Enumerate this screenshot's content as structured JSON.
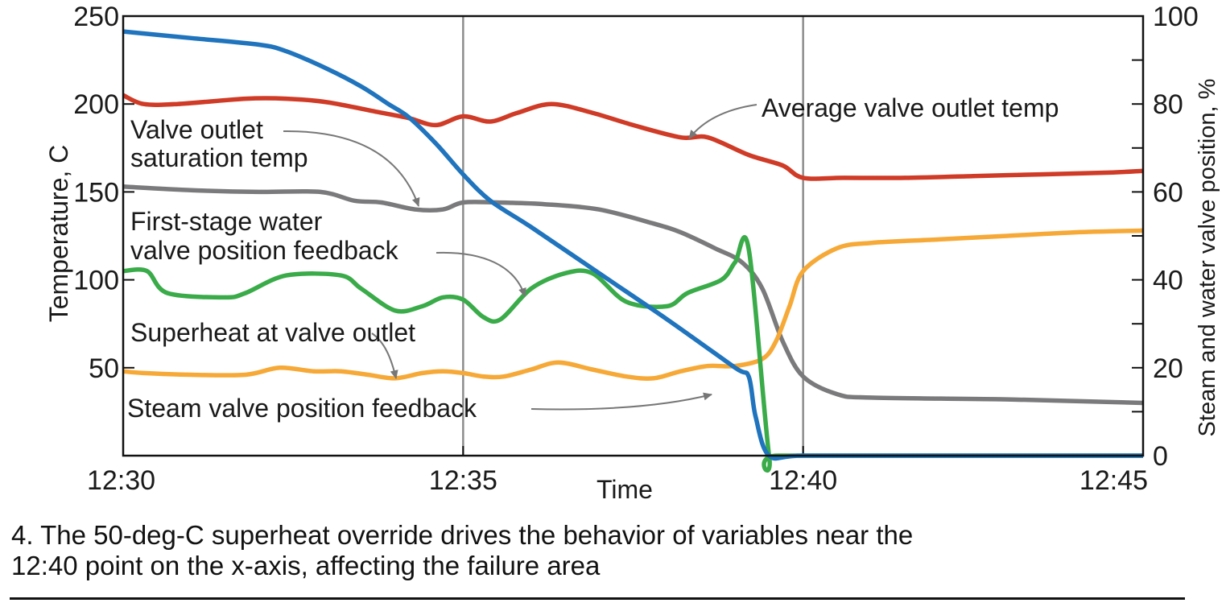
{
  "chart_data": {
    "type": "line",
    "x_ticks": [
      "12:30",
      "12:35",
      "12:40",
      "12:45"
    ],
    "x_range": [
      0,
      15
    ],
    "xlabel": "Time",
    "ylabel_left": "Temperature, C",
    "ylabel_right": "Steam and water valve position, %",
    "y_left": {
      "range": [
        0,
        250
      ],
      "ticks": [
        50,
        100,
        150,
        200,
        250
      ]
    },
    "y_right": {
      "range": [
        0,
        100
      ],
      "ticks": [
        0,
        20,
        40,
        60,
        80,
        100
      ]
    },
    "vertical_reference_lines_at": [
      5,
      10
    ],
    "series": [
      {
        "name": "Average valve outlet temp",
        "axis": "left",
        "color": "#cf3b26",
        "x": [
          0,
          0.3,
          0.8,
          1.8,
          2.4,
          3.0,
          3.8,
          4.2,
          4.6,
          5.0,
          5.4,
          5.8,
          6.3,
          6.9,
          7.5,
          8.2,
          8.6,
          9.2,
          9.7,
          10.0,
          10.6,
          11.5,
          12.5,
          13.5,
          14.5,
          15
        ],
        "y": [
          205,
          200,
          200,
          203,
          203,
          201,
          195,
          192,
          188,
          193,
          190,
          195,
          200,
          195,
          188,
          181,
          181,
          171,
          165,
          158,
          158,
          158,
          159,
          160,
          161,
          162
        ]
      },
      {
        "name": "Valve outlet saturation temp",
        "axis": "left",
        "color": "#7a7a7c",
        "x": [
          0,
          1.0,
          2.0,
          2.9,
          3.4,
          3.8,
          4.3,
          4.7,
          5.0,
          5.5,
          6.2,
          7.0,
          7.8,
          8.2,
          8.7,
          9.1,
          9.4,
          9.7,
          10.0,
          10.5,
          11.0,
          13.0,
          15
        ],
        "y": [
          153,
          151,
          150,
          150,
          145,
          144,
          140,
          140,
          144,
          144,
          143,
          140,
          132,
          127,
          118,
          110,
          95,
          65,
          45,
          35,
          33,
          32,
          30
        ]
      },
      {
        "name": "First-stage water valve position feedback",
        "axis": "right",
        "color": "#3aab49",
        "x": [
          0,
          0.35,
          0.65,
          1.5,
          1.8,
          2.4,
          3.2,
          3.5,
          4.0,
          4.4,
          4.7,
          5.0,
          5.3,
          5.55,
          6.0,
          6.5,
          6.9,
          7.4,
          8.0,
          8.3,
          8.8,
          9.0,
          9.2,
          9.5,
          9.62,
          12.0,
          15
        ],
        "y": [
          42,
          42,
          37,
          36,
          37,
          41,
          41,
          38,
          33,
          34,
          36,
          35.5,
          31.5,
          31,
          38,
          41.5,
          41.5,
          35,
          34,
          37,
          40,
          44,
          47,
          0,
          0,
          0,
          0
        ]
      },
      {
        "name": "Superheat at valve outlet",
        "axis": "left",
        "color": "#f6a936",
        "x": [
          0,
          0.3,
          1.0,
          1.8,
          2.3,
          2.8,
          3.2,
          3.6,
          4.0,
          4.4,
          4.7,
          5.0,
          5.3,
          5.6,
          6.0,
          6.4,
          6.9,
          7.4,
          7.8,
          8.2,
          8.6,
          9.0,
          9.4,
          9.6,
          9.8,
          10.0,
          10.5,
          11.0,
          12.0,
          13.0,
          14.0,
          15
        ],
        "y": [
          48,
          47,
          46,
          46,
          50,
          48,
          48,
          46,
          44,
          47,
          48,
          47,
          45,
          45,
          49,
          53,
          49,
          45,
          44,
          48,
          51,
          51,
          55,
          65,
          85,
          105,
          118,
          121,
          123,
          125,
          127,
          128
        ]
      },
      {
        "name": "Steam valve position feedback",
        "axis": "right",
        "color": "#1f74bd",
        "x": [
          0,
          1.0,
          2.0,
          2.4,
          3.0,
          3.5,
          3.9,
          4.2,
          4.6,
          5.0,
          5.4,
          6.0,
          7.0,
          8.0,
          9.0,
          9.2,
          9.3,
          9.5,
          10.0,
          12.0,
          15
        ],
        "y": [
          96.5,
          95,
          93.5,
          92,
          88,
          84,
          80,
          77,
          71,
          64,
          58,
          52,
          41.5,
          31,
          20,
          18,
          9,
          0,
          0,
          0,
          0
        ]
      }
    ],
    "annotations": {
      "average_outlet": "Average valve outlet temp",
      "saturation_line1": "Valve outlet",
      "saturation_line2": "saturation temp",
      "water_line1": "First-stage water",
      "water_line2": "valve position feedback",
      "superheat": "Superheat at valve outlet",
      "steam": "Steam valve position feedback"
    }
  },
  "caption": {
    "line1": "4. The 50-deg-C superheat override drives the behavior of variables near the",
    "line2": "12:40 point on the x-axis, affecting the failure area"
  }
}
